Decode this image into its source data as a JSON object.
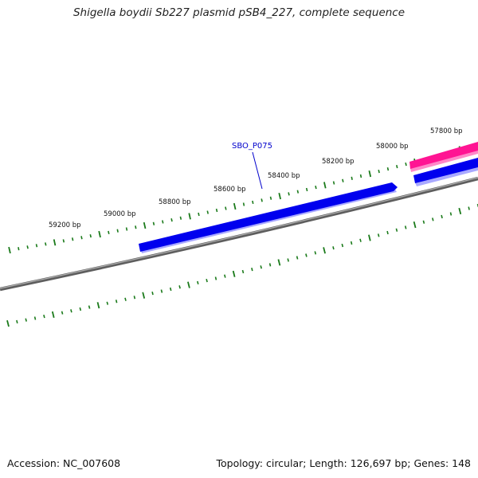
{
  "title": "Shigella boydii Sb227 plasmid pSB4_227, complete sequence",
  "footer": {
    "accession": "Accession: NC_007608",
    "info": "Topology: circular; Length: 126,697 bp; Genes: 148"
  },
  "ruler_labels": [
    {
      "text": "57800 bp"
    },
    {
      "text": "58000 bp"
    },
    {
      "text": "58200 bp"
    },
    {
      "text": "58400 bp"
    },
    {
      "text": "58600 bp"
    },
    {
      "text": "58800 bp"
    },
    {
      "text": "59000 bp"
    },
    {
      "text": "59200 bp"
    }
  ],
  "gene_labels": [
    {
      "text": "SBO_P075"
    }
  ],
  "colors": {
    "tick": "#1a7a1a",
    "backbone": "#7a7a7a",
    "gene_forward": "#0000ee",
    "gene_reverse": "#ff1493",
    "gene_label": "#0000cc"
  }
}
